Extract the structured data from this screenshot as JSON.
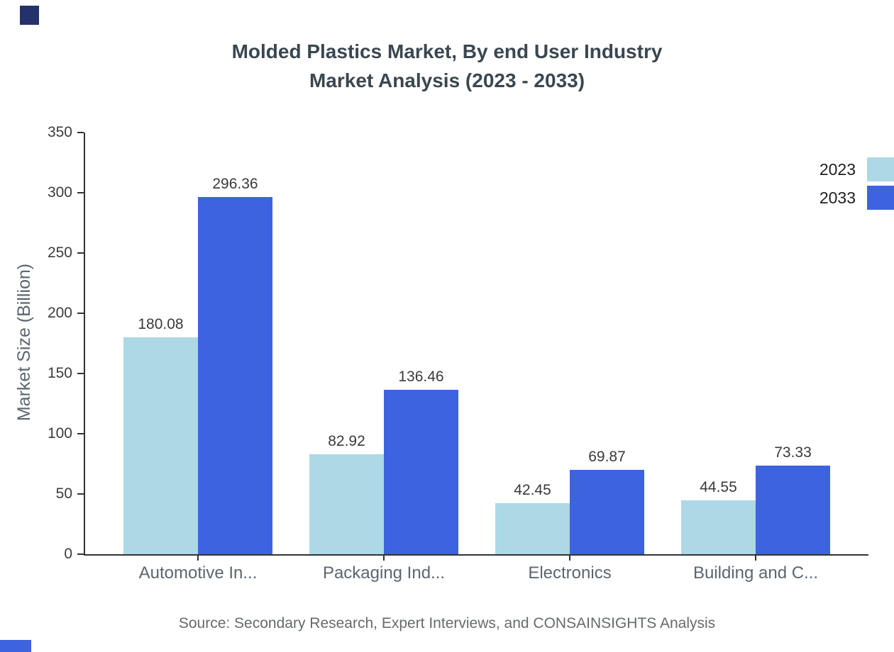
{
  "title": {
    "line1": "Molded Plastics Market, By end User Industry",
    "line2": "Market Analysis (2023 - 2033)"
  },
  "source": "Source: Secondary Research, Expert Interviews, and CONSAINSIGHTS Analysis",
  "decor": {
    "top_left_square_color": "#24316b",
    "bottom_left_bar_color": "#3d63e0"
  },
  "chart_data": {
    "type": "bar",
    "title": "Molded Plastics Market, By end User Industry Market Analysis (2023 - 2033)",
    "categories": [
      "Automotive In...",
      "Packaging Ind...",
      "Electronics",
      "Building and C..."
    ],
    "series": [
      {
        "name": "2023",
        "color": "#add8e6",
        "values": [
          180.08,
          82.92,
          42.45,
          44.55
        ]
      },
      {
        "name": "2033",
        "color": "#3d63e0",
        "values": [
          296.36,
          136.46,
          69.87,
          73.33
        ]
      }
    ],
    "xlabel": "",
    "ylabel": "Market Size (Billion)",
    "ylim": [
      0,
      350
    ],
    "ytick_step": 50,
    "grid": false,
    "legend_position": "top-right",
    "value_labels": true
  }
}
